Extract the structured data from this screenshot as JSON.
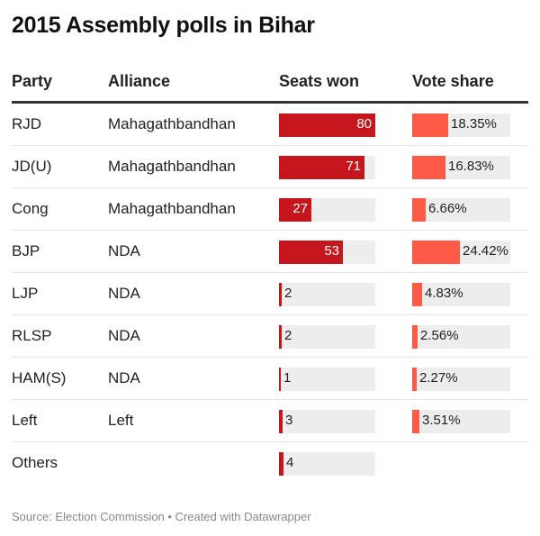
{
  "title": "2015 Assembly polls in Bihar",
  "source": "Source: Election Commission • Created with Datawrapper",
  "colors": {
    "seats": "#c4161c",
    "vote": "#ff5a45",
    "track": "#ededed"
  },
  "chart_data": {
    "type": "table",
    "title": "2015 Assembly polls in Bihar",
    "columns": [
      "Party",
      "Alliance",
      "Seats won",
      "Vote share"
    ],
    "seats_max": 80,
    "vote_max": 50,
    "rows": [
      {
        "party": "RJD",
        "alliance": "Mahagathbandhan",
        "seats": 80,
        "seats_label": "80",
        "vote": 18.35,
        "vote_label": "18.35%"
      },
      {
        "party": "JD(U)",
        "alliance": "Mahagathbandhan",
        "seats": 71,
        "seats_label": "71",
        "vote": 16.83,
        "vote_label": "16.83%"
      },
      {
        "party": "Cong",
        "alliance": "Mahagathbandhan",
        "seats": 27,
        "seats_label": "27",
        "vote": 6.66,
        "vote_label": "6.66%"
      },
      {
        "party": "BJP",
        "alliance": "NDA",
        "seats": 53,
        "seats_label": "53",
        "vote": 24.42,
        "vote_label": "24.42%"
      },
      {
        "party": "LJP",
        "alliance": "NDA",
        "seats": 2,
        "seats_label": "2",
        "vote": 4.83,
        "vote_label": "4.83%"
      },
      {
        "party": "RLSP",
        "alliance": "NDA",
        "seats": 2,
        "seats_label": "2",
        "vote": 2.56,
        "vote_label": "2.56%"
      },
      {
        "party": "HAM(S)",
        "alliance": "NDA",
        "seats": 1,
        "seats_label": "1",
        "vote": 2.27,
        "vote_label": "2.27%"
      },
      {
        "party": "Left",
        "alliance": "Left",
        "seats": 3,
        "seats_label": "3",
        "vote": 3.51,
        "vote_label": "3.51%"
      },
      {
        "party": "Others",
        "alliance": "",
        "seats": 4,
        "seats_label": "4",
        "vote": null,
        "vote_label": ""
      }
    ]
  }
}
